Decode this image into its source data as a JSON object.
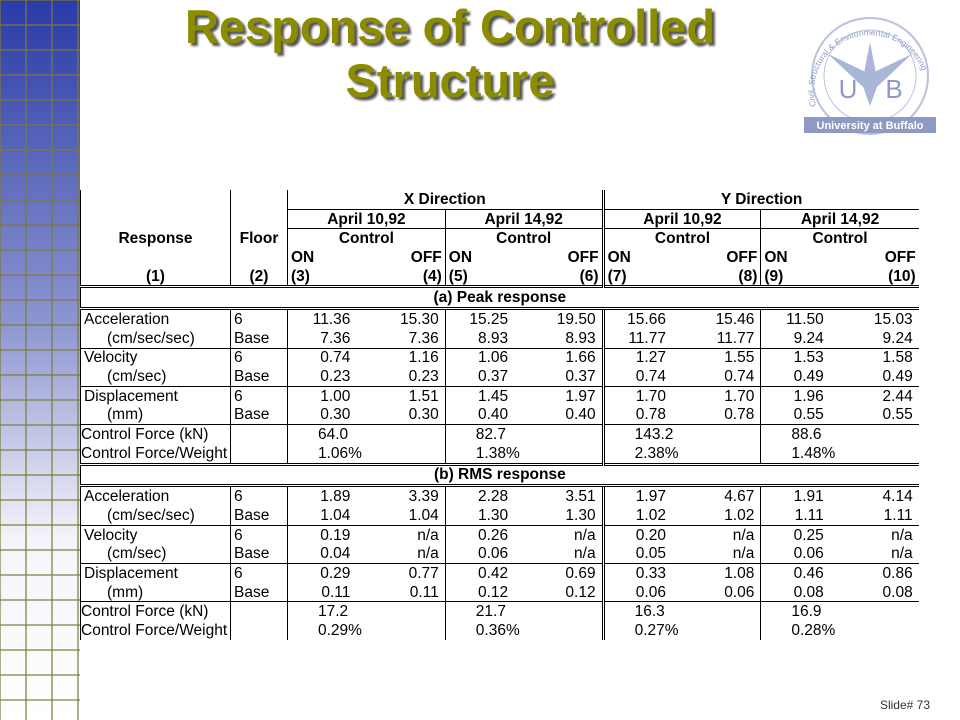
{
  "title": "Response of Controlled Structure",
  "logo": {
    "letters": [
      "U",
      "B"
    ],
    "name": "University at Buffalo",
    "ring": "Civil, Structural & Environmental Engineering"
  },
  "slide_number": "Slide# 73",
  "table": {
    "directions": [
      "X Direction",
      "Y Direction"
    ],
    "dates": [
      "April 10,92",
      "April 14,92",
      "April 10,92",
      "April 14,92"
    ],
    "response_header": "Response",
    "floor_header": "Floor",
    "control": [
      "Control",
      "Control",
      "Control",
      "Control"
    ],
    "on_off": [
      "ON",
      "OFF",
      "ON",
      "OFF",
      "ON",
      "OFF",
      "ON",
      "OFF"
    ],
    "numbers": [
      "(1)",
      "(2)",
      "(3)",
      "(4)",
      "(5)",
      "(6)",
      "(7)",
      "(8)",
      "(9)",
      "(10)"
    ],
    "sections": [
      {
        "title": "(a) Peak response",
        "rows": [
          {
            "label": "Acceleration",
            "floor": "6",
            "values": [
              "11.36",
              "15.30",
              "15.25",
              "19.50",
              "15.66",
              "15.46",
              "11.50",
              "15.03"
            ]
          },
          {
            "label": "(cm/sec/sec)",
            "floor": "Base",
            "values": [
              "7.36",
              "7.36",
              "8.93",
              "8.93",
              "11.77",
              "11.77",
              "9.24",
              "9.24"
            ]
          },
          {
            "label": "Velocity",
            "floor": "6",
            "values": [
              "0.74",
              "1.16",
              "1.06",
              "1.66",
              "1.27",
              "1.55",
              "1.53",
              "1.58"
            ]
          },
          {
            "label": "(cm/sec)",
            "floor": "Base",
            "values": [
              "0.23",
              "0.23",
              "0.37",
              "0.37",
              "0.74",
              "0.74",
              "0.49",
              "0.49"
            ]
          },
          {
            "label": "Displacement",
            "floor": "6",
            "values": [
              "1.00",
              "1.51",
              "1.45",
              "1.97",
              "1.70",
              "1.70",
              "1.96",
              "2.44"
            ]
          },
          {
            "label": "(mm)",
            "floor": "Base",
            "values": [
              "0.30",
              "0.30",
              "0.40",
              "0.40",
              "0.78",
              "0.78",
              "0.55",
              "0.55"
            ]
          },
          {
            "label": "Control Force (kN)",
            "values": [
              "64.0",
              "82.7",
              "143.2",
              "88.6"
            ]
          },
          {
            "label": "Control Force/Weight",
            "values": [
              "1.06%",
              "1.38%",
              "2.38%",
              "1.48%"
            ]
          }
        ]
      },
      {
        "title": "(b) RMS response",
        "rows": [
          {
            "label": "Acceleration",
            "floor": "6",
            "values": [
              "1.89",
              "3.39",
              "2.28",
              "3.51",
              "1.97",
              "4.67",
              "1.91",
              "4.14"
            ]
          },
          {
            "label": "(cm/sec/sec)",
            "floor": "Base",
            "values": [
              "1.04",
              "1.04",
              "1.30",
              "1.30",
              "1.02",
              "1.02",
              "1.11",
              "1.11"
            ]
          },
          {
            "label": "Velocity",
            "floor": "6",
            "values": [
              "0.19",
              "n/a",
              "0.26",
              "n/a",
              "0.20",
              "n/a",
              "0.25",
              "n/a"
            ]
          },
          {
            "label": "(cm/sec)",
            "floor": "Base",
            "values": [
              "0.04",
              "n/a",
              "0.06",
              "n/a",
              "0.05",
              "n/a",
              "0.06",
              "n/a"
            ]
          },
          {
            "label": "Displacement",
            "floor": "6",
            "values": [
              "0.29",
              "0.77",
              "0.42",
              "0.69",
              "0.33",
              "1.08",
              "0.46",
              "0.86"
            ]
          },
          {
            "label": "(mm)",
            "floor": "Base",
            "values": [
              "0.11",
              "0.11",
              "0.12",
              "0.12",
              "0.06",
              "0.06",
              "0.08",
              "0.08"
            ]
          },
          {
            "label": "Control Force (kN)",
            "values": [
              "17.2",
              "21.7",
              "16.3",
              "16.9"
            ]
          },
          {
            "label": "Control Force/Weight",
            "values": [
              "0.29%",
              "0.36%",
              "0.27%",
              "0.28%"
            ]
          }
        ]
      }
    ]
  }
}
